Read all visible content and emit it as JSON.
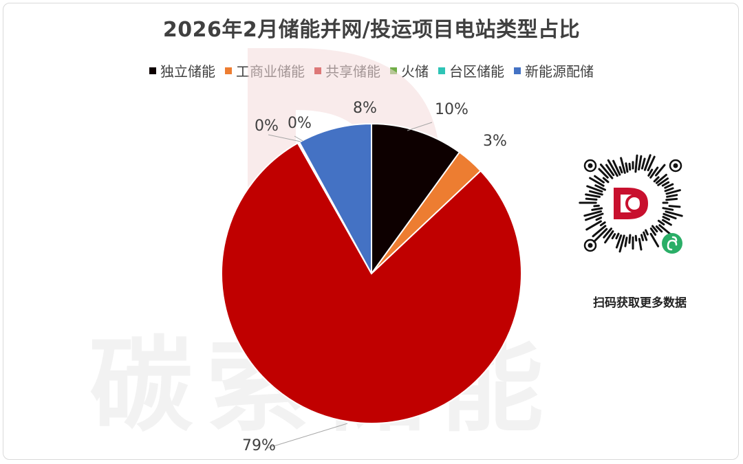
{
  "title": "2026年2月储能并网/投运项目电站类型占比",
  "chart_data": {
    "type": "pie",
    "title": "2026年2月储能并网/投运项目电站类型占比",
    "series": [
      {
        "name": "独立储能",
        "value": 10,
        "label": "10%",
        "color": "#0d0000"
      },
      {
        "name": "工商业储能",
        "value": 3,
        "label": "3%",
        "color": "#ed7d31"
      },
      {
        "name": "共享储能",
        "value": 79,
        "label": "79%",
        "color": "#c00000"
      },
      {
        "name": "火储",
        "value": 0.1,
        "label": "0%",
        "color": "#70ad47"
      },
      {
        "name": "台区储能",
        "value": 0.1,
        "label": "0%",
        "color": "#2ec4b6"
      },
      {
        "name": "新能源配储",
        "value": 8,
        "label": "8%",
        "color": "#4472c4"
      }
    ],
    "legend_position": "top"
  },
  "watermark": "碳索储能",
  "qr": {
    "caption": "扫码获取更多数据"
  }
}
